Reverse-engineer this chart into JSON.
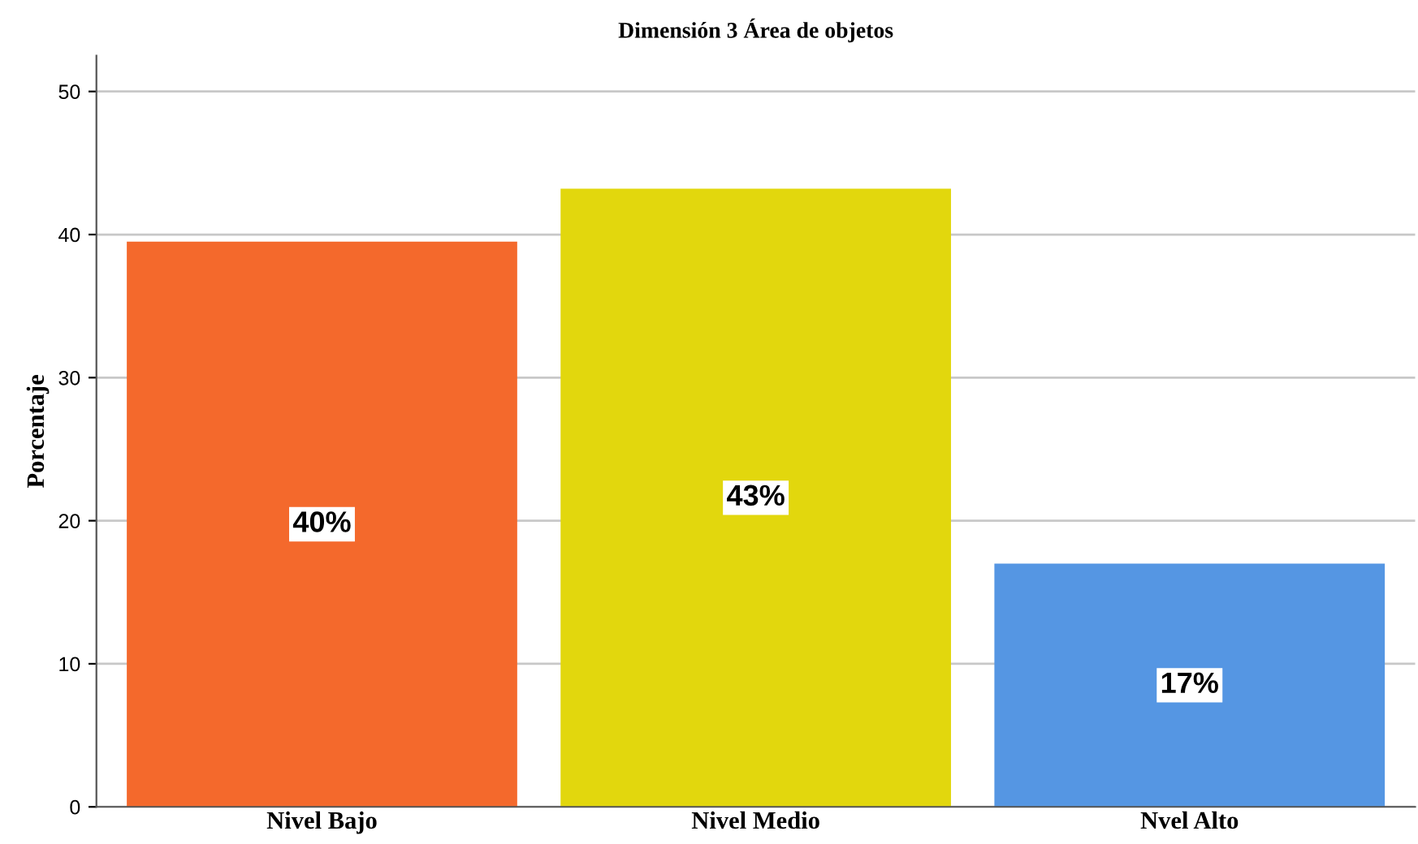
{
  "chart_data": {
    "type": "bar",
    "title": "Dimensión 3 Área de objetos",
    "ylabel": "Porcentaje",
    "categories": [
      "Nivel Bajo",
      "Nivel Medio",
      "Nvel Alto"
    ],
    "values": [
      39.5,
      43.2,
      17.0
    ],
    "colors": [
      "#f4692c",
      "#e2d70d",
      "#5596e3"
    ],
    "value_labels": [
      "40%",
      "43%",
      "17%"
    ],
    "ylim": [
      0,
      52.5
    ],
    "yticks": [
      0,
      10,
      20,
      30,
      40,
      50
    ],
    "grid": "y"
  }
}
